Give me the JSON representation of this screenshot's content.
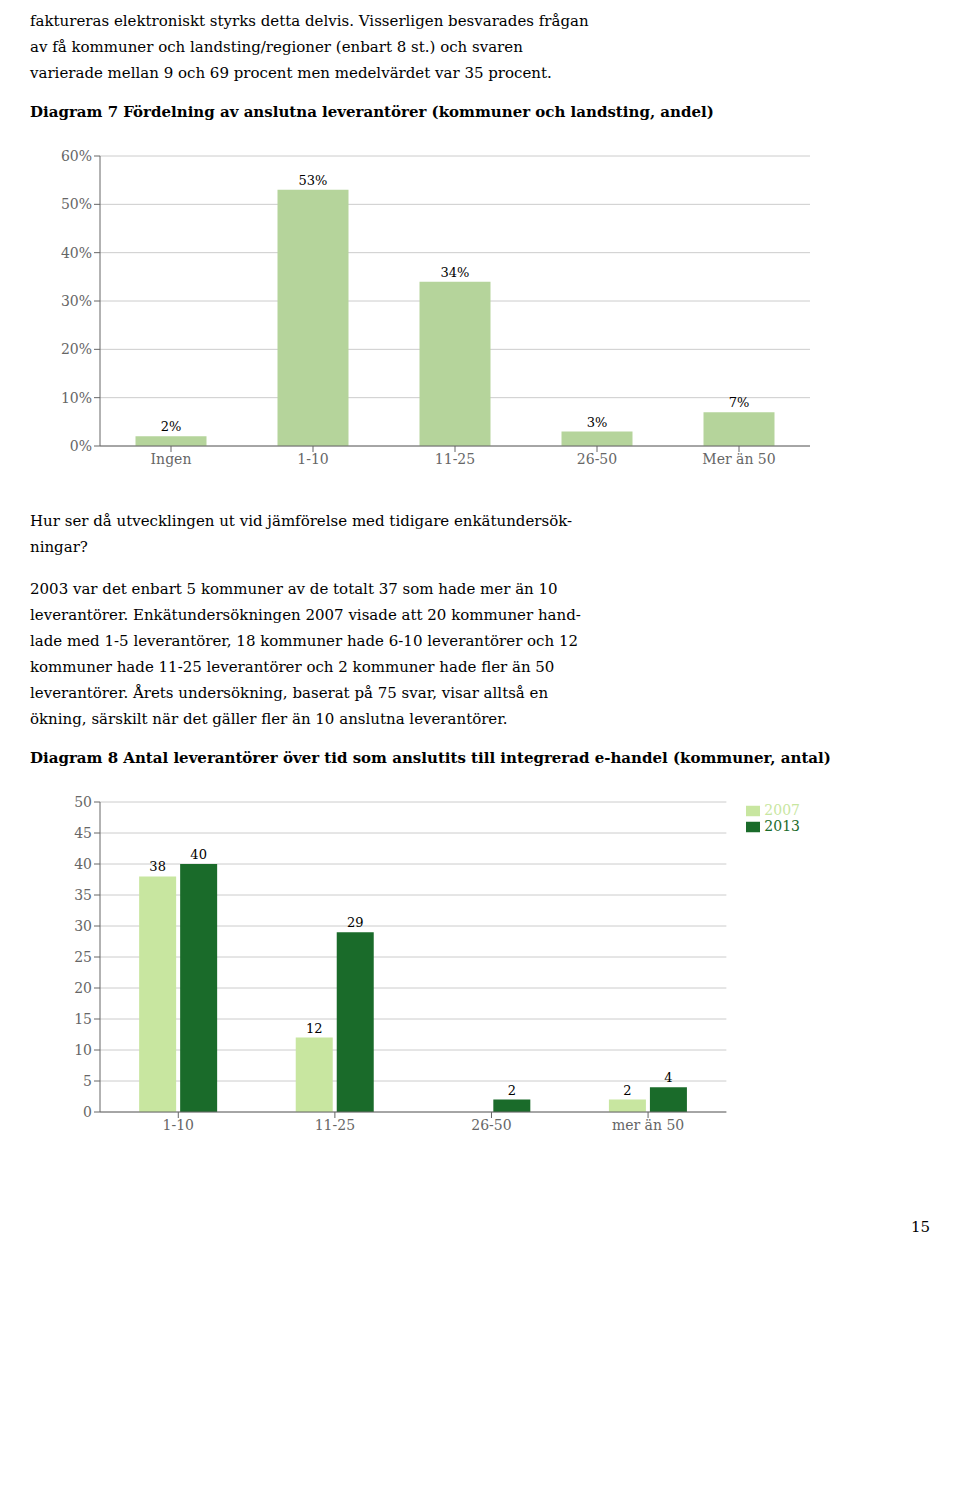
{
  "page": {
    "text_top": [
      "faktureras elektroniskt styrks detta delvis. Visserligen besvarades frågan",
      "av få kommuner och landsting/regioner (enbart 8 st.) och svaren",
      "varierade mellan 9 och 69 procent men medelvärdet var 35 procent."
    ],
    "text_between": [
      [
        "Hur ser då utvecklingen ut vid jämförelse med tidigare enkätundersök-",
        "ningar?"
      ],
      [
        "2003 var det enbart 5 kommuner av de totalt 37 som hade mer än 10",
        "leverantörer. Enkätundersökningen 2007 visade att 20 kommuner hand-",
        "lade med 1-5 leverantörer, 18 kommuner hade 6-10 leverantörer och 12",
        "kommuner hade 11-25 leverantörer och 2 kommuner hade fler än 50",
        "leverantörer. Årets undersökning, baserat på 75 svar, visar alltså en",
        "ökning, särskilt när det gäller fler än 10 anslutna leverantörer."
      ]
    ],
    "page_number": "15"
  },
  "chart_data": [
    {
      "type": "bar",
      "title": "Diagram 7 Fördelning av anslutna leverantörer (kommuner och landsting, andel)",
      "categories": [
        "Ingen",
        "1-10",
        "11-25",
        "26-50",
        "Mer än 50"
      ],
      "values": [
        2,
        53,
        34,
        3,
        7
      ],
      "value_labels": [
        "2%",
        "53%",
        "34%",
        "3%",
        "7%"
      ],
      "color": "#b5d49b",
      "ylim": [
        0,
        60
      ],
      "yticks": [
        {
          "value": 0,
          "label": "0%"
        },
        {
          "value": 10,
          "label": "10%"
        },
        {
          "value": 20,
          "label": "20%"
        },
        {
          "value": 30,
          "label": "30%"
        },
        {
          "value": 40,
          "label": "40%"
        },
        {
          "value": 50,
          "label": "50%"
        },
        {
          "value": 60,
          "label": "60%"
        }
      ],
      "grid": true,
      "data_labels": true
    },
    {
      "type": "bar",
      "title": "Diagram 8 Antal leverantörer över tid som anslutits till integrerad e-handel (kommuner, antal)",
      "categories": [
        "1-10",
        "11-25",
        "26-50",
        "mer än 50"
      ],
      "series": [
        {
          "name": "2007",
          "color": "#c8e6a0",
          "values": [
            38,
            12,
            0,
            2
          ]
        },
        {
          "name": "2013",
          "color": "#1a6b2a",
          "values": [
            40,
            29,
            2,
            4
          ]
        }
      ],
      "ylim": [
        0,
        50
      ],
      "yticks": [
        0,
        5,
        10,
        15,
        20,
        25,
        30,
        35,
        40,
        45,
        50
      ],
      "grid": true,
      "data_labels": true,
      "legend": "right"
    }
  ]
}
